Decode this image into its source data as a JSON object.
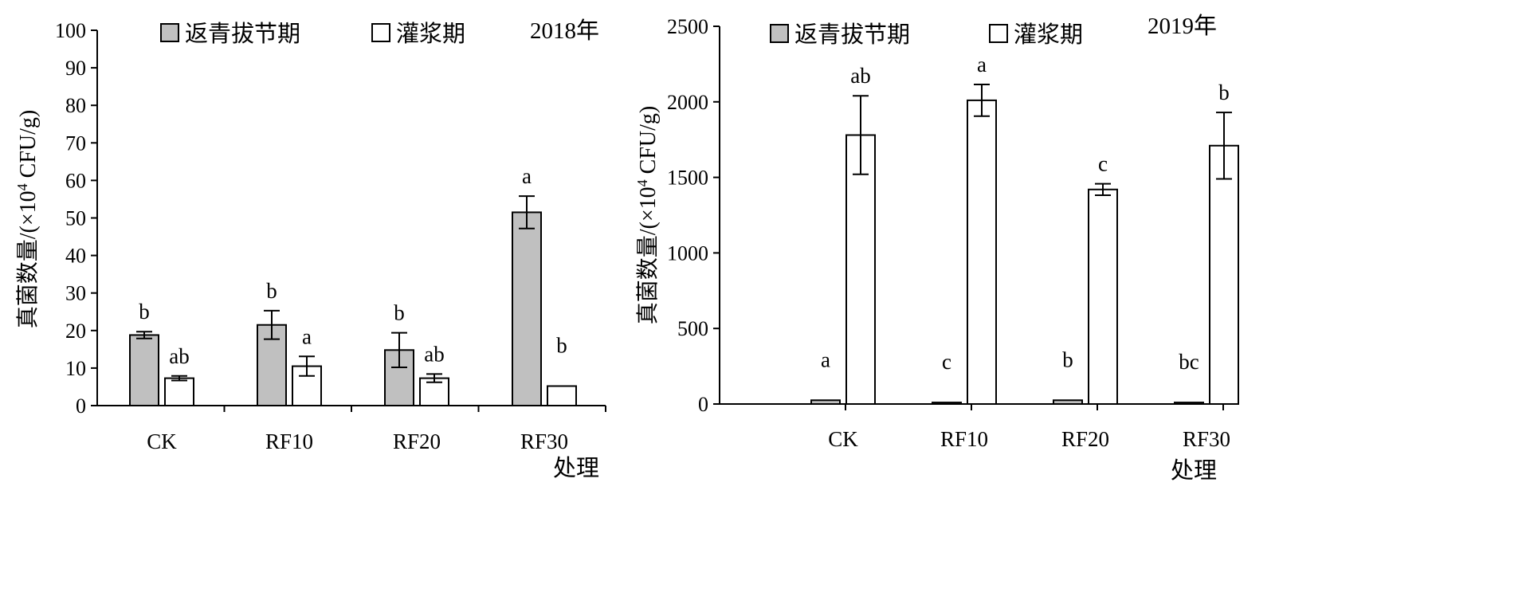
{
  "chart_data": [
    {
      "type": "bar",
      "year_label": "2018年",
      "ylabel": "真菌数量/(×10⁴ CFU/g)",
      "ylabel_prefix": "真菌数量/(×10",
      "ylabel_sup": "4",
      "ylabel_suffix": " CFU/g)",
      "xlabel": "处理",
      "categories": [
        "CK",
        "RF10",
        "RF20",
        "RF30"
      ],
      "ylim": [
        0,
        100
      ],
      "yticks": [
        "0",
        "10",
        "20",
        "30",
        "40",
        "50",
        "60",
        "70",
        "80",
        "90",
        "100"
      ],
      "grid": false,
      "legend_position": "top-center",
      "series": [
        {
          "name": "返青拔节期",
          "color": "#c0c0c0",
          "values": [
            18.8,
            21.5,
            14.8,
            51.5
          ],
          "errors": [
            0.9,
            3.8,
            4.6,
            4.3
          ],
          "letters": [
            "b",
            "b",
            "b",
            "a"
          ]
        },
        {
          "name": "灌浆期",
          "color": "#ffffff",
          "values": [
            7.3,
            10.5,
            7.3,
            5.2
          ],
          "errors": [
            0.6,
            2.6,
            1.1,
            0
          ],
          "letters": [
            "ab",
            "a",
            "ab",
            "b"
          ]
        }
      ]
    },
    {
      "type": "bar",
      "year_label": "2019年",
      "ylabel": "真菌数量/(×10⁴ CFU/g)",
      "ylabel_prefix": "真菌数量/(×10",
      "ylabel_sup": "4",
      "ylabel_suffix": " CFU/g)",
      "xlabel": "处理",
      "categories": [
        "CK",
        "RF10",
        "RF20",
        "RF30"
      ],
      "ylim": [
        0,
        2500
      ],
      "yticks": [
        "0",
        "500",
        "1000",
        "1500",
        "2000",
        "2500"
      ],
      "grid": false,
      "legend_position": "top-center",
      "series": [
        {
          "name": "返青拔节期",
          "color": "#c0c0c0",
          "values": [
            25,
            10,
            25,
            10
          ],
          "errors": [
            0,
            0,
            0,
            0
          ],
          "letters": [
            "a",
            "c",
            "b",
            "bc"
          ]
        },
        {
          "name": "灌浆期",
          "color": "#ffffff",
          "values": [
            1780,
            2010,
            1420,
            1710
          ],
          "errors": [
            260,
            105,
            38,
            220
          ],
          "letters": [
            "ab",
            "a",
            "c",
            "b"
          ]
        }
      ]
    }
  ]
}
